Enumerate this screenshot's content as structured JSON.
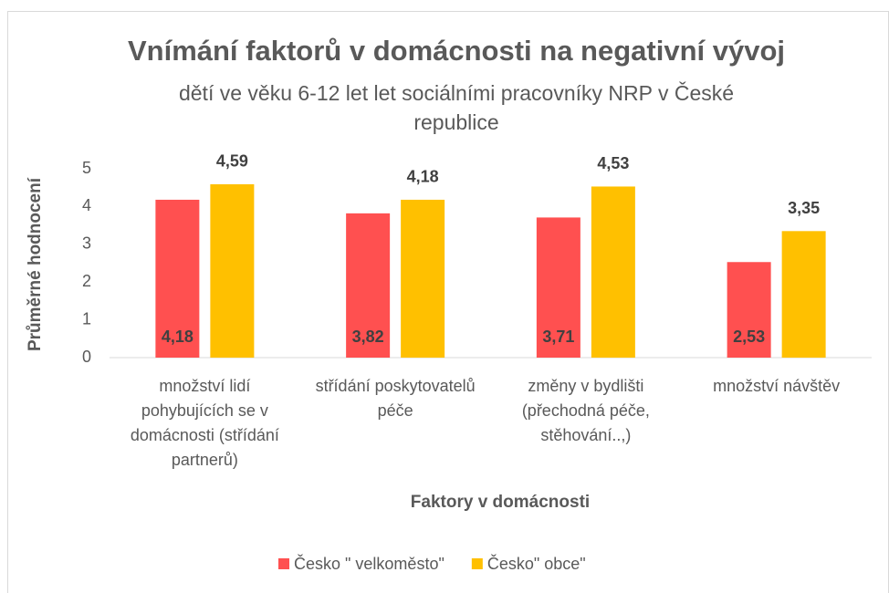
{
  "chart_data": {
    "type": "bar",
    "title": "Vnímání faktorů v domácnosti na negativní vývoj",
    "subtitle": "dětí ve věku 6-12 let let sociálními pracovníky NRP v České republice",
    "x_label": "Faktory v domácnosti",
    "y_label": "Průměrné hodnocení",
    "categories": [
      "množství lidí pohybujících se v domácnosti (střídání partnerů)",
      "střídání poskytovatelů péče",
      "změny v bydlišti (přechodná péče, stěhování..,)",
      "množství návštěv"
    ],
    "series": [
      {
        "name": "Česko \" velkoměsto\"",
        "color": "#ff5050",
        "values": [
          4.18,
          3.82,
          3.71,
          2.53
        ],
        "value_labels": [
          "4,18",
          "3,82",
          "3,71",
          "2,53"
        ]
      },
      {
        "name": "Česko\" obce\"",
        "color": "#ffc000",
        "values": [
          4.59,
          4.18,
          4.53,
          3.35
        ],
        "value_labels": [
          "4,59",
          "4,18",
          "4,53",
          "3,35"
        ]
      }
    ],
    "ylim": [
      0,
      5
    ],
    "yticks": [
      0,
      1,
      2,
      3,
      4,
      5
    ],
    "grid": false,
    "legend": "bottom"
  }
}
